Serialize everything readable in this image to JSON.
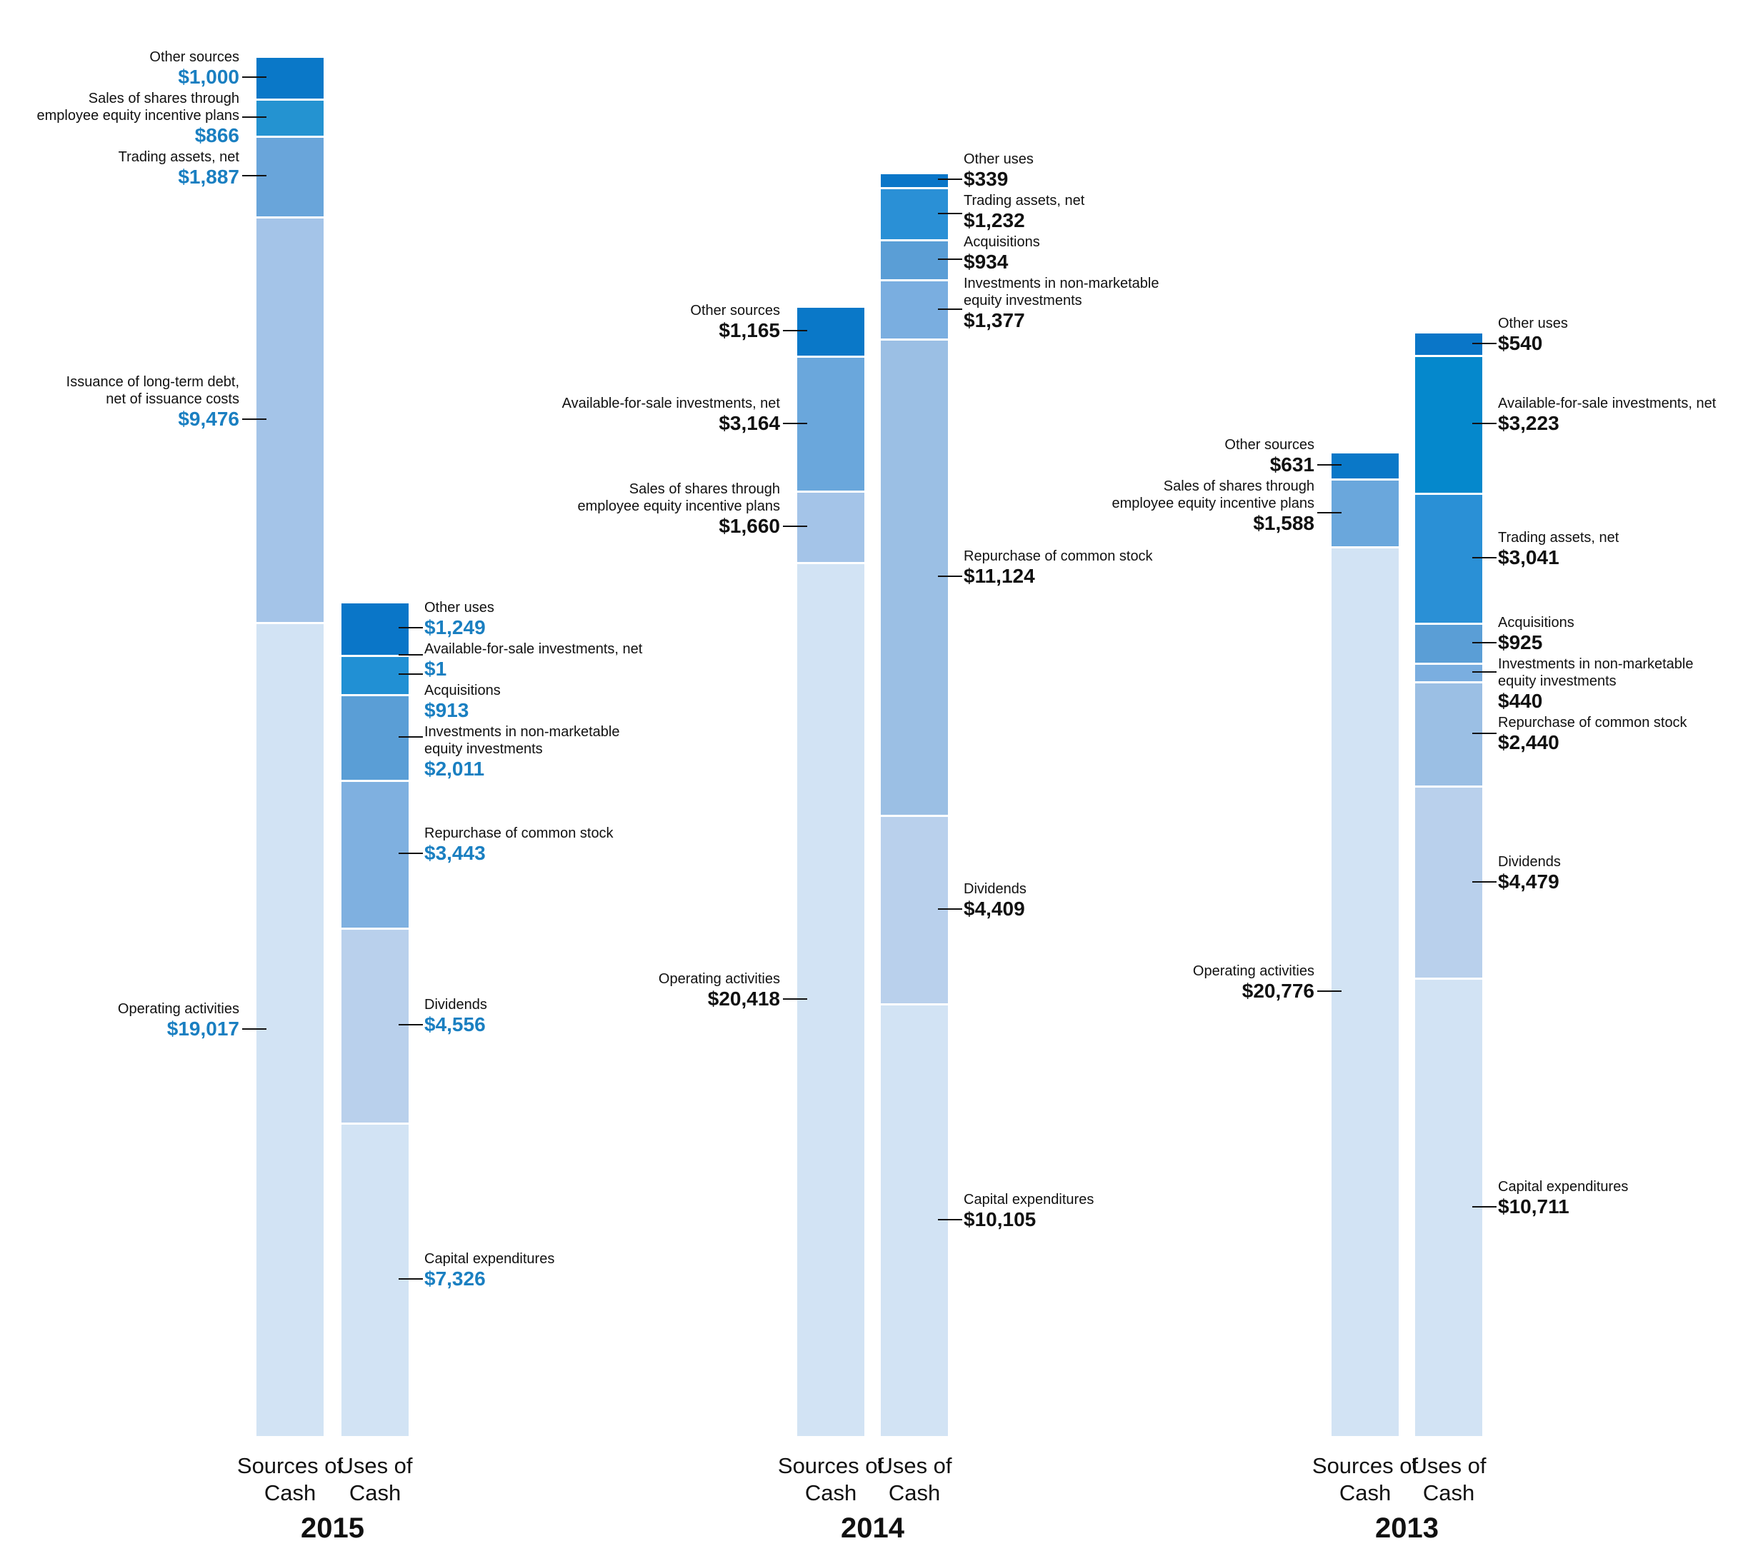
{
  "chart_data": [
    {
      "type": "stacked-bar",
      "title": "2015",
      "label_color": "#1a7fc1",
      "bars": [
        {
          "category": "Sources of Cash",
          "segments": [
            {
              "name": "Operating activities",
              "value": 19017,
              "value_label": "$19,017",
              "color": "#d2e3f4"
            },
            {
              "name": "Issuance of long-term debt,\nnet of issuance costs",
              "value": 9476,
              "value_label": "$9,476",
              "color": "#a4c4e8"
            },
            {
              "name": "Trading assets, net",
              "value": 1887,
              "value_label": "$1,887",
              "color": "#69a5da"
            },
            {
              "name": "Sales of shares through\nemployee equity incentive plans",
              "value": 866,
              "value_label": "$866",
              "color": "#2493d1"
            },
            {
              "name": "Other sources",
              "value": 1000,
              "value_label": "$1,000",
              "color": "#0a78c8"
            }
          ]
        },
        {
          "category": "Uses of Cash",
          "segments": [
            {
              "name": "Capital expenditures",
              "value": 7326,
              "value_label": "$7,326",
              "color": "#d2e3f4"
            },
            {
              "name": "Dividends",
              "value": 4556,
              "value_label": "$4,556",
              "color": "#b9d0ec"
            },
            {
              "name": "Repurchase of common stock",
              "value": 3443,
              "value_label": "$3,443",
              "color": "#7fb0e0"
            },
            {
              "name": "Investments in non-marketable\nequity investments",
              "value": 2011,
              "value_label": "$2,011",
              "color": "#5a9ed6"
            },
            {
              "name": "Acquisitions",
              "value": 913,
              "value_label": "$913",
              "color": "#2190d4"
            },
            {
              "name": "Available-for-sale investments, net",
              "value": 1,
              "value_label": "$1",
              "color": "#1585cc"
            },
            {
              "name": "Other uses",
              "value": 1249,
              "value_label": "$1,249",
              "color": "#0a76c8"
            }
          ]
        }
      ]
    },
    {
      "type": "stacked-bar",
      "title": "2014",
      "label_color": "#111111",
      "bars": [
        {
          "category": "Sources of Cash",
          "segments": [
            {
              "name": "Operating activities",
              "value": 20418,
              "value_label": "$20,418",
              "color": "#d2e3f4"
            },
            {
              "name": "Sales of shares through\nemployee equity incentive plans",
              "value": 1660,
              "value_label": "$1,660",
              "color": "#a4c4e8"
            },
            {
              "name": "Available-for-sale investments, net",
              "value": 3164,
              "value_label": "$3,164",
              "color": "#6aa7dc"
            },
            {
              "name": "Other sources",
              "value": 1165,
              "value_label": "$1,165",
              "color": "#0a78c8"
            }
          ]
        },
        {
          "category": "Uses of Cash",
          "segments": [
            {
              "name": "Capital expenditures",
              "value": 10105,
              "value_label": "$10,105",
              "color": "#d2e3f4"
            },
            {
              "name": "Dividends",
              "value": 4409,
              "value_label": "$4,409",
              "color": "#b9d0ec"
            },
            {
              "name": "Repurchase of common stock",
              "value": 11124,
              "value_label": "$11,124",
              "color": "#9bbfe4"
            },
            {
              "name": "Investments in non-marketable\nequity investments",
              "value": 1377,
              "value_label": "$1,377",
              "color": "#7aaee0"
            },
            {
              "name": "Acquisitions",
              "value": 934,
              "value_label": "$934",
              "color": "#5a9ed6"
            },
            {
              "name": "Trading assets, net",
              "value": 1232,
              "value_label": "$1,232",
              "color": "#2a90d6"
            },
            {
              "name": "Other uses",
              "value": 339,
              "value_label": "$339",
              "color": "#0a76c8"
            }
          ]
        }
      ]
    },
    {
      "type": "stacked-bar",
      "title": "2013",
      "label_color": "#111111",
      "bars": [
        {
          "category": "Sources of Cash",
          "segments": [
            {
              "name": "Operating activities",
              "value": 20776,
              "value_label": "$20,776",
              "color": "#d2e3f4"
            },
            {
              "name": "Sales of shares through\nemployee equity incentive plans",
              "value": 1588,
              "value_label": "$1,588",
              "color": "#6aa7dc"
            },
            {
              "name": "Other sources",
              "value": 631,
              "value_label": "$631",
              "color": "#0a78c8"
            }
          ]
        },
        {
          "category": "Uses of Cash",
          "segments": [
            {
              "name": "Capital expenditures",
              "value": 10711,
              "value_label": "$10,711",
              "color": "#d2e3f4"
            },
            {
              "name": "Dividends",
              "value": 4479,
              "value_label": "$4,479",
              "color": "#b9d0ec"
            },
            {
              "name": "Repurchase of common stock",
              "value": 2440,
              "value_label": "$2,440",
              "color": "#9bbfe4"
            },
            {
              "name": "Investments in non-marketable\nequity investments",
              "value": 440,
              "value_label": "$440",
              "color": "#7aaee0"
            },
            {
              "name": "Acquisitions",
              "value": 925,
              "value_label": "$925",
              "color": "#5a9ed6"
            },
            {
              "name": "Trading assets, net",
              "value": 3041,
              "value_label": "$3,041",
              "color": "#2a90d6"
            },
            {
              "name": "Available-for-sale investments, net",
              "value": 3223,
              "value_label": "$3,223",
              "color": "#0588cc"
            },
            {
              "name": "Other uses",
              "value": 540,
              "value_label": "$540",
              "color": "#0a76c8"
            }
          ]
        }
      ]
    }
  ]
}
